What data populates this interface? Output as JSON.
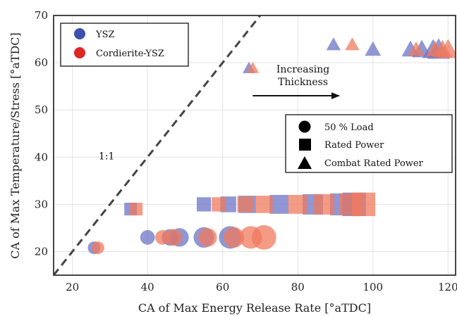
{
  "chart_data": {
    "type": "scatter",
    "title": "",
    "xlabel": "CA of Max Energy Release Rate [°aTDC]",
    "ylabel": "CA of Max Temperature/Stress [°aTDC]",
    "xlim": [
      15,
      122
    ],
    "ylim": [
      15,
      70
    ],
    "xticks": [
      20,
      40,
      60,
      80,
      100,
      120
    ],
    "yticks": [
      20,
      30,
      40,
      50,
      60,
      70
    ],
    "grid": true,
    "legend_material": {
      "placement": "top-left",
      "entries": [
        {
          "label": "YSZ",
          "color": "#3f4fb0"
        },
        {
          "label": "Cordierite-YSZ",
          "color": "#e02525"
        }
      ]
    },
    "legend_load": {
      "placement": "center-right",
      "entries": [
        {
          "label": "50 % Load",
          "marker": "circle"
        },
        {
          "label": "Rated Power",
          "marker": "square"
        },
        {
          "label": "Combat Rated Power",
          "marker": "triangle"
        }
      ]
    },
    "reference_line": {
      "label": "1:1",
      "slope": 1
    },
    "arrow_annotation": {
      "text_line1": "Increasing",
      "text_line2": "Thickness",
      "x_from": 68,
      "x_to": 91,
      "y": 53
    },
    "series": [
      {
        "name": "YSZ",
        "material": "YSZ",
        "load": "50 % Load",
        "marker": "circle",
        "points": [
          [
            25.8,
            20.8,
            1
          ],
          [
            40,
            23,
            2
          ],
          [
            46,
            23,
            3
          ],
          [
            48.5,
            23,
            4
          ],
          [
            55,
            23,
            5
          ],
          [
            62,
            23,
            6
          ]
        ]
      },
      {
        "name": "Cordierite-YSZ",
        "material": "Cordierite-YSZ",
        "load": "50 % Load",
        "marker": "circle",
        "points": [
          [
            26.8,
            20.8,
            1
          ],
          [
            44,
            23,
            2
          ],
          [
            47,
            23,
            3
          ],
          [
            56,
            23,
            4
          ],
          [
            63,
            23,
            5
          ],
          [
            67.5,
            23,
            6
          ],
          [
            71,
            23,
            7
          ]
        ]
      },
      {
        "name": "YSZ",
        "material": "YSZ",
        "load": "Rated Power",
        "marker": "square",
        "points": [
          [
            35.5,
            29,
            1
          ],
          [
            55,
            30,
            2
          ],
          [
            61.5,
            30,
            3
          ],
          [
            66.5,
            30,
            4
          ],
          [
            75,
            30,
            5
          ],
          [
            84,
            30,
            6
          ],
          [
            91.5,
            30,
            7
          ],
          [
            95,
            30,
            8
          ]
        ]
      },
      {
        "name": "Cordierite-YSZ",
        "material": "Cordierite-YSZ",
        "load": "Rated Power",
        "marker": "square",
        "points": [
          [
            37,
            29,
            1
          ],
          [
            59,
            30,
            2
          ],
          [
            66,
            30,
            3
          ],
          [
            71,
            30,
            4
          ],
          [
            80,
            30,
            5
          ],
          [
            87,
            30,
            6
          ],
          [
            94,
            30,
            7
          ],
          [
            97.5,
            30,
            8
          ]
        ]
      },
      {
        "name": "YSZ",
        "material": "YSZ",
        "load": "Combat Rated Power",
        "marker": "triangle",
        "points": [
          [
            67,
            59,
            1
          ],
          [
            89.5,
            64,
            2
          ],
          [
            100,
            63,
            3
          ],
          [
            110,
            63,
            4
          ],
          [
            113,
            63,
            5
          ],
          [
            116,
            63,
            6
          ],
          [
            117.5,
            63,
            7
          ]
        ]
      },
      {
        "name": "Cordierite-YSZ",
        "material": "Cordierite-YSZ",
        "load": "Combat Rated Power",
        "marker": "triangle",
        "points": [
          [
            68,
            59,
            1
          ],
          [
            94.5,
            64,
            2
          ],
          [
            111.5,
            63,
            3
          ],
          [
            116.5,
            63,
            4
          ],
          [
            118.5,
            63,
            5
          ],
          [
            120,
            63,
            6
          ]
        ]
      }
    ]
  }
}
